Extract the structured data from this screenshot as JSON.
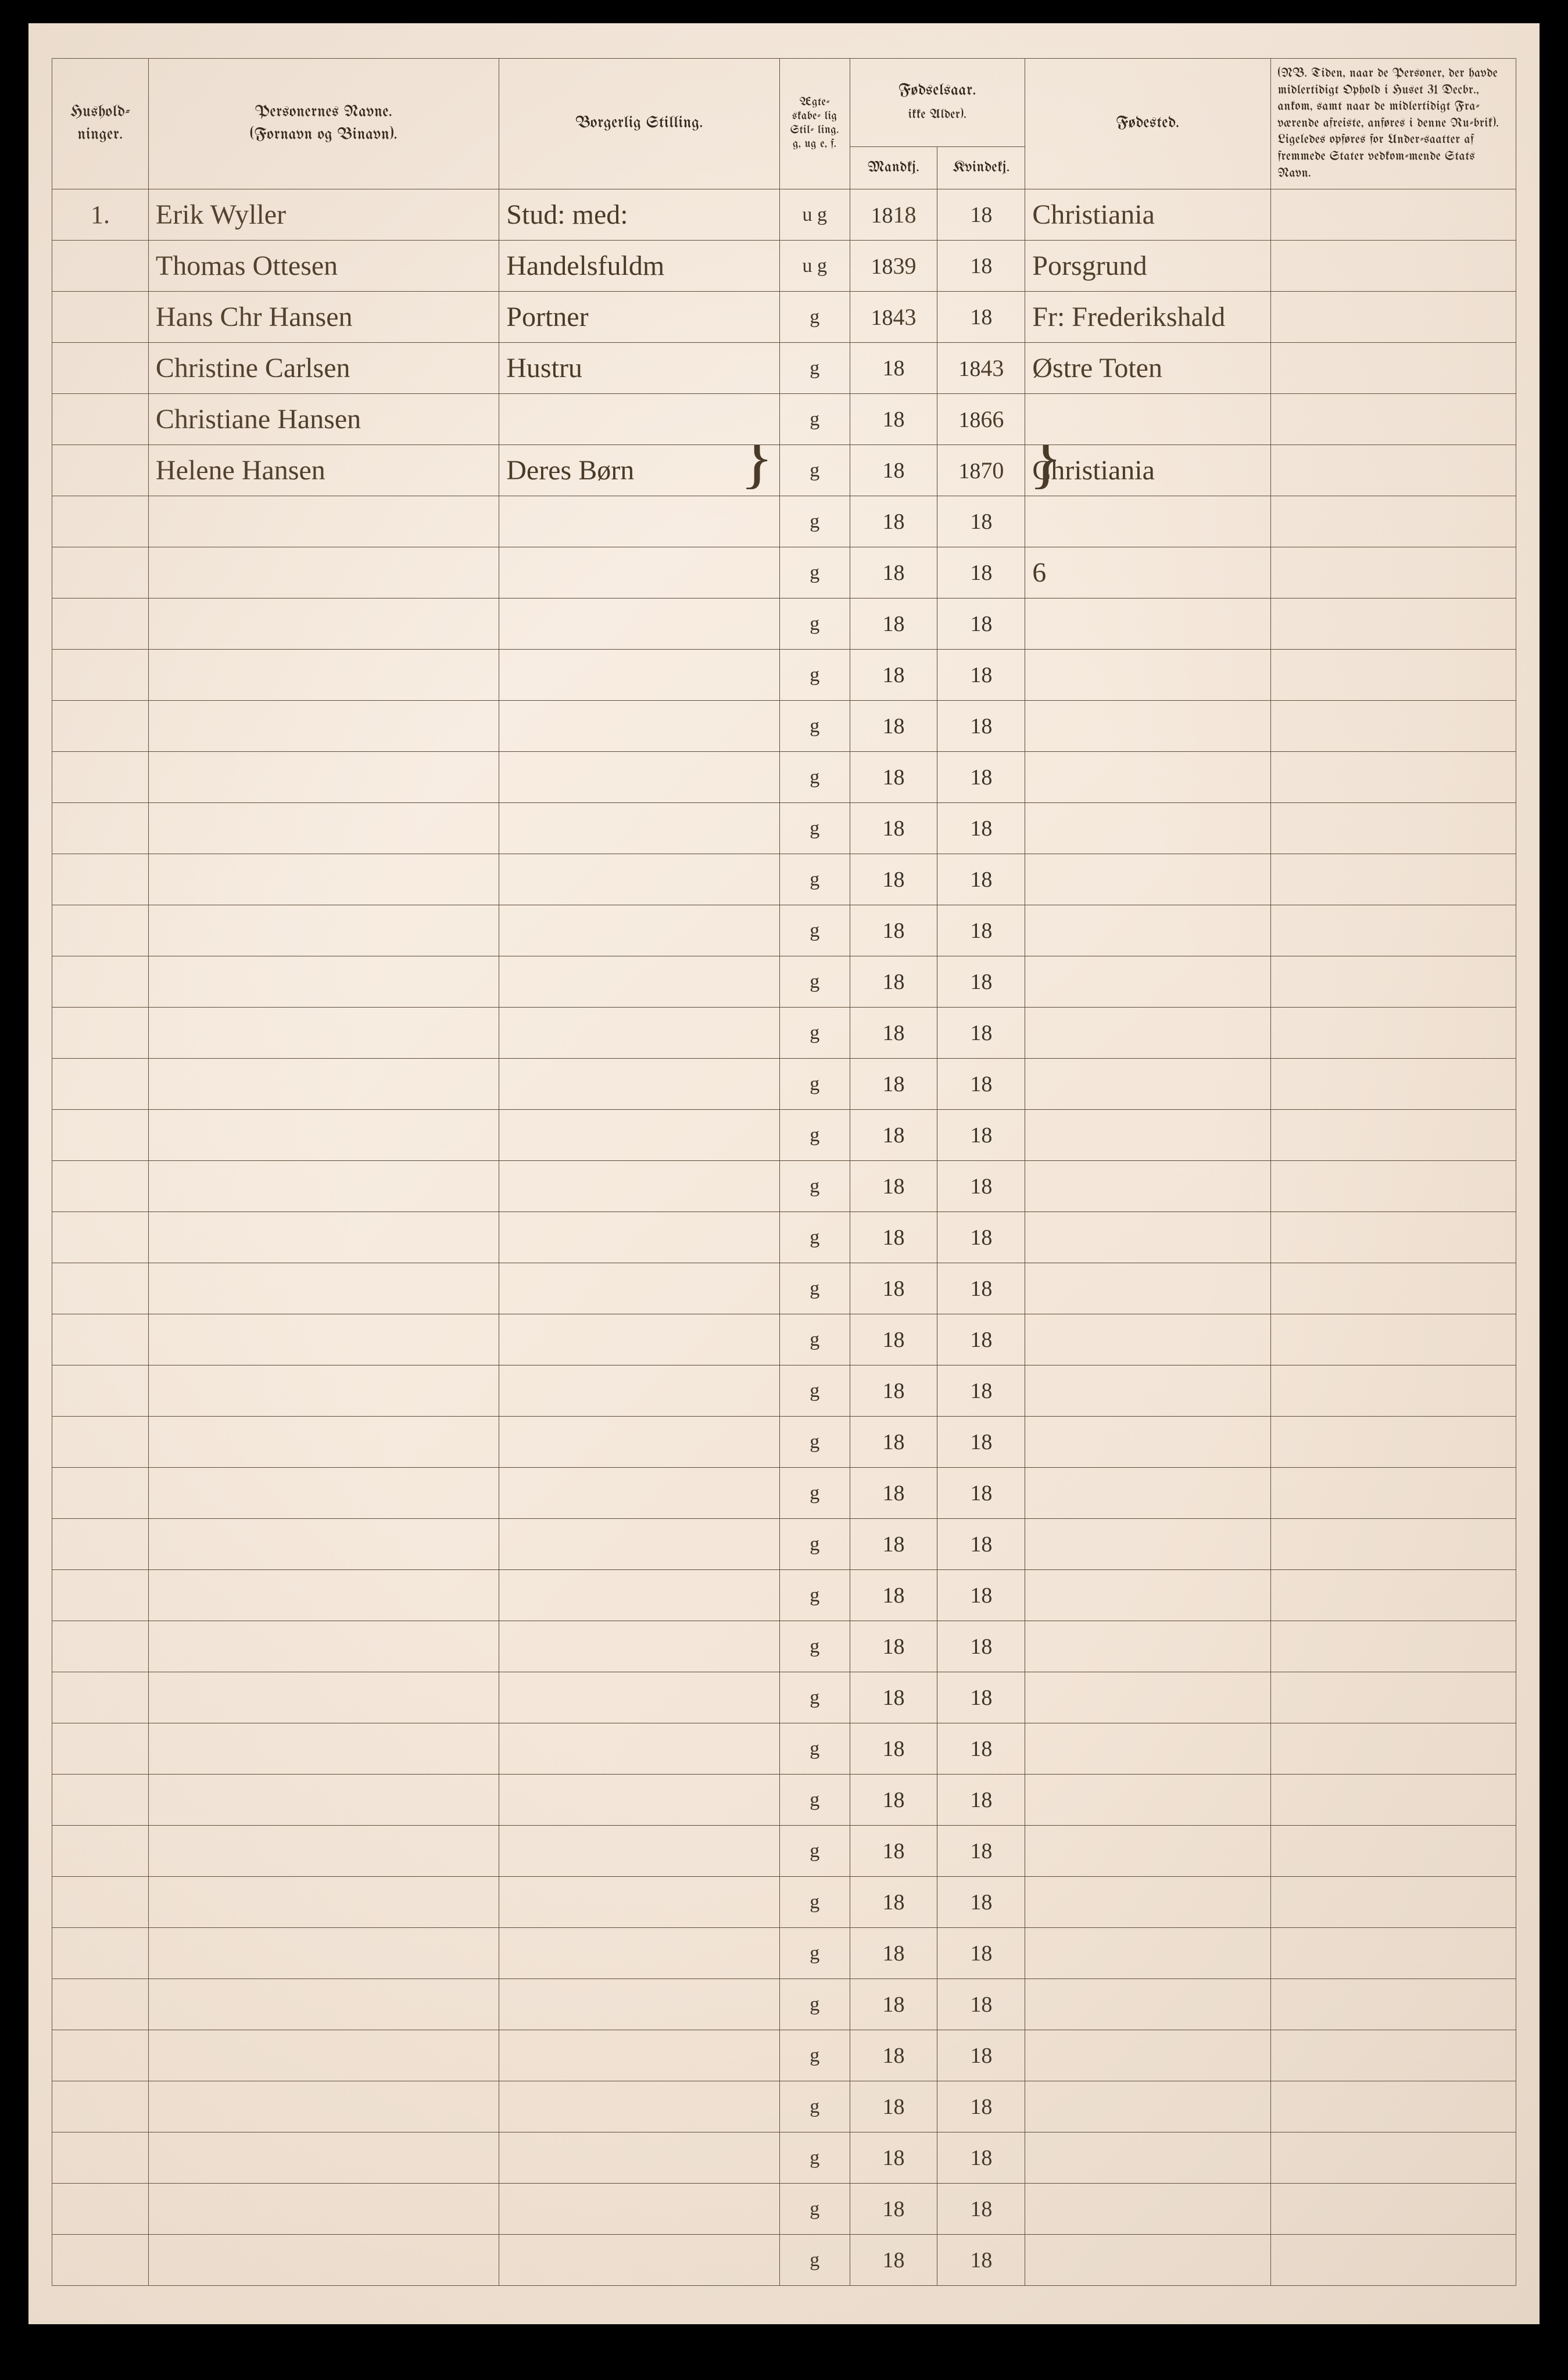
{
  "headers": {
    "husholdninger": "Hushold-\nninger.",
    "personernes_navne": "Personernes Navne.",
    "fornavn_binavn": "(Fornavn og Binavn).",
    "borgerlig_stilling": "Borgerlig Stilling.",
    "egteskabelig": "Ægte-\nskabe-\nlig\nStil-\nling.\ng, ug\ne, f.",
    "fodselsaar": "Fødselsaar.",
    "ikke_alder": "ikke Alder).",
    "mandkj": "Mandkj.",
    "kvindekj": "Kvindekj.",
    "fodested": "Fødested.",
    "nb_text": "(NB. Tiden, naar de Personer, der havde midlertidigt Ophold i Huset 31 Decbr., ankom, samt naar de midlertidigt Fra-værende afreiste, anføres i denne Ru-brik). Ligeledes opføres for Under-saatter af fremmede Stater vedkom-mende Stats Navn."
  },
  "printed_18": "18",
  "printed_g": "g",
  "rows": [
    {
      "hush": "1.",
      "name": "Erik Wyller",
      "stilling": "Stud: med:",
      "egte": "u g",
      "mandk": "18",
      "kvindk": "",
      "fode": "Christiania",
      "hw_mandk": "18"
    },
    {
      "hush": "",
      "name": "Thomas Ottesen",
      "stilling": "Handelsfuldm",
      "egte": "u g",
      "mandk": "39",
      "kvindk": "",
      "fode": "Porsgrund",
      "hw_mandk": "18"
    },
    {
      "hush": "",
      "name": "Hans Chr Hansen",
      "stilling": "Portner",
      "egte": "g",
      "mandk": "43",
      "kvindk": "",
      "fode": "Fr: Frederikshald",
      "hw_mandk": "18"
    },
    {
      "hush": "",
      "name": "Christine Carlsen",
      "stilling": "Hustru",
      "egte": "g",
      "mandk": "",
      "kvindk": "43",
      "fode": "Østre Toten",
      "hw_kvindk": "18"
    },
    {
      "hush": "",
      "name": "Christiane Hansen",
      "stilling": "",
      "egte": "g",
      "mandk": "",
      "kvindk": "66",
      "fode": "",
      "hw_kvindk": "18",
      "brace_start": true
    },
    {
      "hush": "",
      "name": "Helene Hansen",
      "stilling": "Deres Børn",
      "egte": "g",
      "mandk": "",
      "kvindk": "70",
      "fode": "Christiania",
      "hw_kvindk": "18",
      "brace_end": true
    },
    {
      "hush": "",
      "name": "",
      "stilling": "",
      "egte": "g",
      "mandk": "",
      "kvindk": "",
      "fode": ""
    },
    {
      "hush": "",
      "name": "",
      "stilling": "",
      "egte": "g",
      "mandk": "",
      "kvindk": "",
      "fode": "6"
    },
    {
      "hush": "",
      "name": "",
      "stilling": "",
      "egte": "g",
      "mandk": "",
      "kvindk": "",
      "fode": ""
    },
    {
      "hush": "",
      "name": "",
      "stilling": "",
      "egte": "g",
      "mandk": "",
      "kvindk": "",
      "fode": ""
    },
    {
      "hush": "",
      "name": "",
      "stilling": "",
      "egte": "g",
      "mandk": "",
      "kvindk": "",
      "fode": ""
    },
    {
      "hush": "",
      "name": "",
      "stilling": "",
      "egte": "g",
      "mandk": "",
      "kvindk": "",
      "fode": ""
    },
    {
      "hush": "",
      "name": "",
      "stilling": "",
      "egte": "g",
      "mandk": "",
      "kvindk": "",
      "fode": ""
    },
    {
      "hush": "",
      "name": "",
      "stilling": "",
      "egte": "g",
      "mandk": "",
      "kvindk": "",
      "fode": ""
    },
    {
      "hush": "",
      "name": "",
      "stilling": "",
      "egte": "g",
      "mandk": "",
      "kvindk": "",
      "fode": ""
    },
    {
      "hush": "",
      "name": "",
      "stilling": "",
      "egte": "g",
      "mandk": "",
      "kvindk": "",
      "fode": ""
    },
    {
      "hush": "",
      "name": "",
      "stilling": "",
      "egte": "g",
      "mandk": "",
      "kvindk": "",
      "fode": ""
    },
    {
      "hush": "",
      "name": "",
      "stilling": "",
      "egte": "g",
      "mandk": "",
      "kvindk": "",
      "fode": ""
    },
    {
      "hush": "",
      "name": "",
      "stilling": "",
      "egte": "g",
      "mandk": "",
      "kvindk": "",
      "fode": ""
    },
    {
      "hush": "",
      "name": "",
      "stilling": "",
      "egte": "g",
      "mandk": "",
      "kvindk": "",
      "fode": ""
    },
    {
      "hush": "",
      "name": "",
      "stilling": "",
      "egte": "g",
      "mandk": "",
      "kvindk": "",
      "fode": ""
    },
    {
      "hush": "",
      "name": "",
      "stilling": "",
      "egte": "g",
      "mandk": "",
      "kvindk": "",
      "fode": ""
    },
    {
      "hush": "",
      "name": "",
      "stilling": "",
      "egte": "g",
      "mandk": "",
      "kvindk": "",
      "fode": ""
    },
    {
      "hush": "",
      "name": "",
      "stilling": "",
      "egte": "g",
      "mandk": "",
      "kvindk": "",
      "fode": ""
    },
    {
      "hush": "",
      "name": "",
      "stilling": "",
      "egte": "g",
      "mandk": "",
      "kvindk": "",
      "fode": ""
    },
    {
      "hush": "",
      "name": "",
      "stilling": "",
      "egte": "g",
      "mandk": "",
      "kvindk": "",
      "fode": ""
    },
    {
      "hush": "",
      "name": "",
      "stilling": "",
      "egte": "g",
      "mandk": "",
      "kvindk": "",
      "fode": ""
    },
    {
      "hush": "",
      "name": "",
      "stilling": "",
      "egte": "g",
      "mandk": "",
      "kvindk": "",
      "fode": ""
    },
    {
      "hush": "",
      "name": "",
      "stilling": "",
      "egte": "g",
      "mandk": "",
      "kvindk": "",
      "fode": ""
    },
    {
      "hush": "",
      "name": "",
      "stilling": "",
      "egte": "g",
      "mandk": "",
      "kvindk": "",
      "fode": ""
    },
    {
      "hush": "",
      "name": "",
      "stilling": "",
      "egte": "g",
      "mandk": "",
      "kvindk": "",
      "fode": ""
    },
    {
      "hush": "",
      "name": "",
      "stilling": "",
      "egte": "g",
      "mandk": "",
      "kvindk": "",
      "fode": ""
    },
    {
      "hush": "",
      "name": "",
      "stilling": "",
      "egte": "g",
      "mandk": "",
      "kvindk": "",
      "fode": ""
    },
    {
      "hush": "",
      "name": "",
      "stilling": "",
      "egte": "g",
      "mandk": "",
      "kvindk": "",
      "fode": ""
    },
    {
      "hush": "",
      "name": "",
      "stilling": "",
      "egte": "g",
      "mandk": "",
      "kvindk": "",
      "fode": ""
    },
    {
      "hush": "",
      "name": "",
      "stilling": "",
      "egte": "g",
      "mandk": "",
      "kvindk": "",
      "fode": ""
    },
    {
      "hush": "",
      "name": "",
      "stilling": "",
      "egte": "g",
      "mandk": "",
      "kvindk": "",
      "fode": ""
    },
    {
      "hush": "",
      "name": "",
      "stilling": "",
      "egte": "g",
      "mandk": "",
      "kvindk": "",
      "fode": ""
    },
    {
      "hush": "",
      "name": "",
      "stilling": "",
      "egte": "g",
      "mandk": "",
      "kvindk": "",
      "fode": ""
    },
    {
      "hush": "",
      "name": "",
      "stilling": "",
      "egte": "g",
      "mandk": "",
      "kvindk": "",
      "fode": ""
    },
    {
      "hush": "",
      "name": "",
      "stilling": "",
      "egte": "g",
      "mandk": "",
      "kvindk": "",
      "fode": ""
    }
  ],
  "colors": {
    "paper_bg": "#f4e8dc",
    "ink": "#3a3228",
    "handwriting": "#4a3a28",
    "border": "#5a4a3a"
  }
}
